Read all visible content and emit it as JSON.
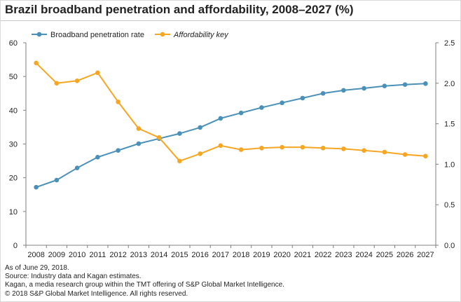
{
  "title": "Brazil broadband penetration and affordability, 2008–2027 (%)",
  "footer": [
    "As of June 29, 2018.",
    "Source: Industry data and Kagan estimates.",
    "Kagan, a media research group within the TMT offering of S&P Global Market Intelligence.",
    "© 2018 S&P Global Market Intelligence. All rights reserved."
  ],
  "colors": {
    "blue": "#4a90b8",
    "orange": "#f5a623",
    "axis": "#7f7f7f"
  },
  "chart_data": {
    "type": "line",
    "title": "Brazil broadband penetration and affordability, 2008–2027 (%)",
    "categories": [
      "2008",
      "2009",
      "2010",
      "2011",
      "2012",
      "2013",
      "2014",
      "2015",
      "2016",
      "2017",
      "2018",
      "2019",
      "2020",
      "2021",
      "2022",
      "2023",
      "2024",
      "2025",
      "2026",
      "2027"
    ],
    "y_left": {
      "min": 0,
      "max": 60,
      "ticks": [
        "0",
        "10",
        "20",
        "30",
        "40",
        "50",
        "60"
      ]
    },
    "y_right": {
      "min": 0,
      "max": 2.5,
      "ticks": [
        "0.0",
        "0.5",
        "1.0",
        "1.5",
        "2.0",
        "2.5"
      ]
    },
    "legend_position": "top-left",
    "grid": false,
    "series": [
      {
        "name": "Broadband penetration rate",
        "axis": "left",
        "color": "#4a90b8",
        "italic": false,
        "values": [
          17.2,
          19.3,
          22.9,
          26.1,
          28.1,
          30.1,
          31.6,
          33.1,
          34.9,
          37.6,
          39.2,
          40.8,
          42.2,
          43.6,
          45.0,
          45.9,
          46.5,
          47.2,
          47.6,
          47.9
        ]
      },
      {
        "name": "Affordability key",
        "axis": "right",
        "color": "#f5a623",
        "italic": true,
        "values": [
          2.25,
          2.0,
          2.03,
          2.13,
          1.77,
          1.44,
          1.33,
          1.04,
          1.13,
          1.23,
          1.18,
          1.2,
          1.21,
          1.21,
          1.2,
          1.19,
          1.17,
          1.15,
          1.12,
          1.1
        ]
      }
    ]
  }
}
